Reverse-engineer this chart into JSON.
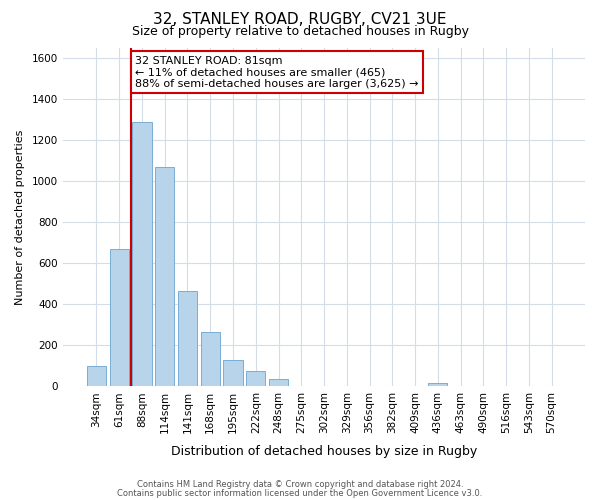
{
  "title": "32, STANLEY ROAD, RUGBY, CV21 3UE",
  "subtitle": "Size of property relative to detached houses in Rugby",
  "xlabel": "Distribution of detached houses by size in Rugby",
  "ylabel": "Number of detached properties",
  "footer_line1": "Contains HM Land Registry data © Crown copyright and database right 2024.",
  "footer_line2": "Contains public sector information licensed under the Open Government Licence v3.0.",
  "bin_labels": [
    "34sqm",
    "61sqm",
    "88sqm",
    "114sqm",
    "141sqm",
    "168sqm",
    "195sqm",
    "222sqm",
    "248sqm",
    "275sqm",
    "302sqm",
    "329sqm",
    "356sqm",
    "382sqm",
    "409sqm",
    "436sqm",
    "463sqm",
    "490sqm",
    "516sqm",
    "543sqm",
    "570sqm"
  ],
  "bar_values": [
    100,
    670,
    1285,
    1070,
    465,
    265,
    130,
    75,
    35,
    0,
    0,
    0,
    0,
    0,
    0,
    15,
    0,
    0,
    0,
    0,
    0
  ],
  "bar_color": "#b8d4ea",
  "bar_edge_color": "#7aadd4",
  "marker_color": "#cc0000",
  "annotation_text": "32 STANLEY ROAD: 81sqm\n← 11% of detached houses are smaller (465)\n88% of semi-detached houses are larger (3,625) →",
  "annotation_box_facecolor": "#ffffff",
  "annotation_box_edgecolor": "#cc0000",
  "ylim": [
    0,
    1650
  ],
  "yticks": [
    0,
    200,
    400,
    600,
    800,
    1000,
    1200,
    1400,
    1600
  ],
  "grid_color": "#d4dce8",
  "background_color": "#ffffff",
  "title_fontsize": 11,
  "subtitle_fontsize": 9,
  "xlabel_fontsize": 9,
  "ylabel_fontsize": 8,
  "tick_fontsize": 7.5,
  "annotation_fontsize": 8,
  "footer_fontsize": 6
}
